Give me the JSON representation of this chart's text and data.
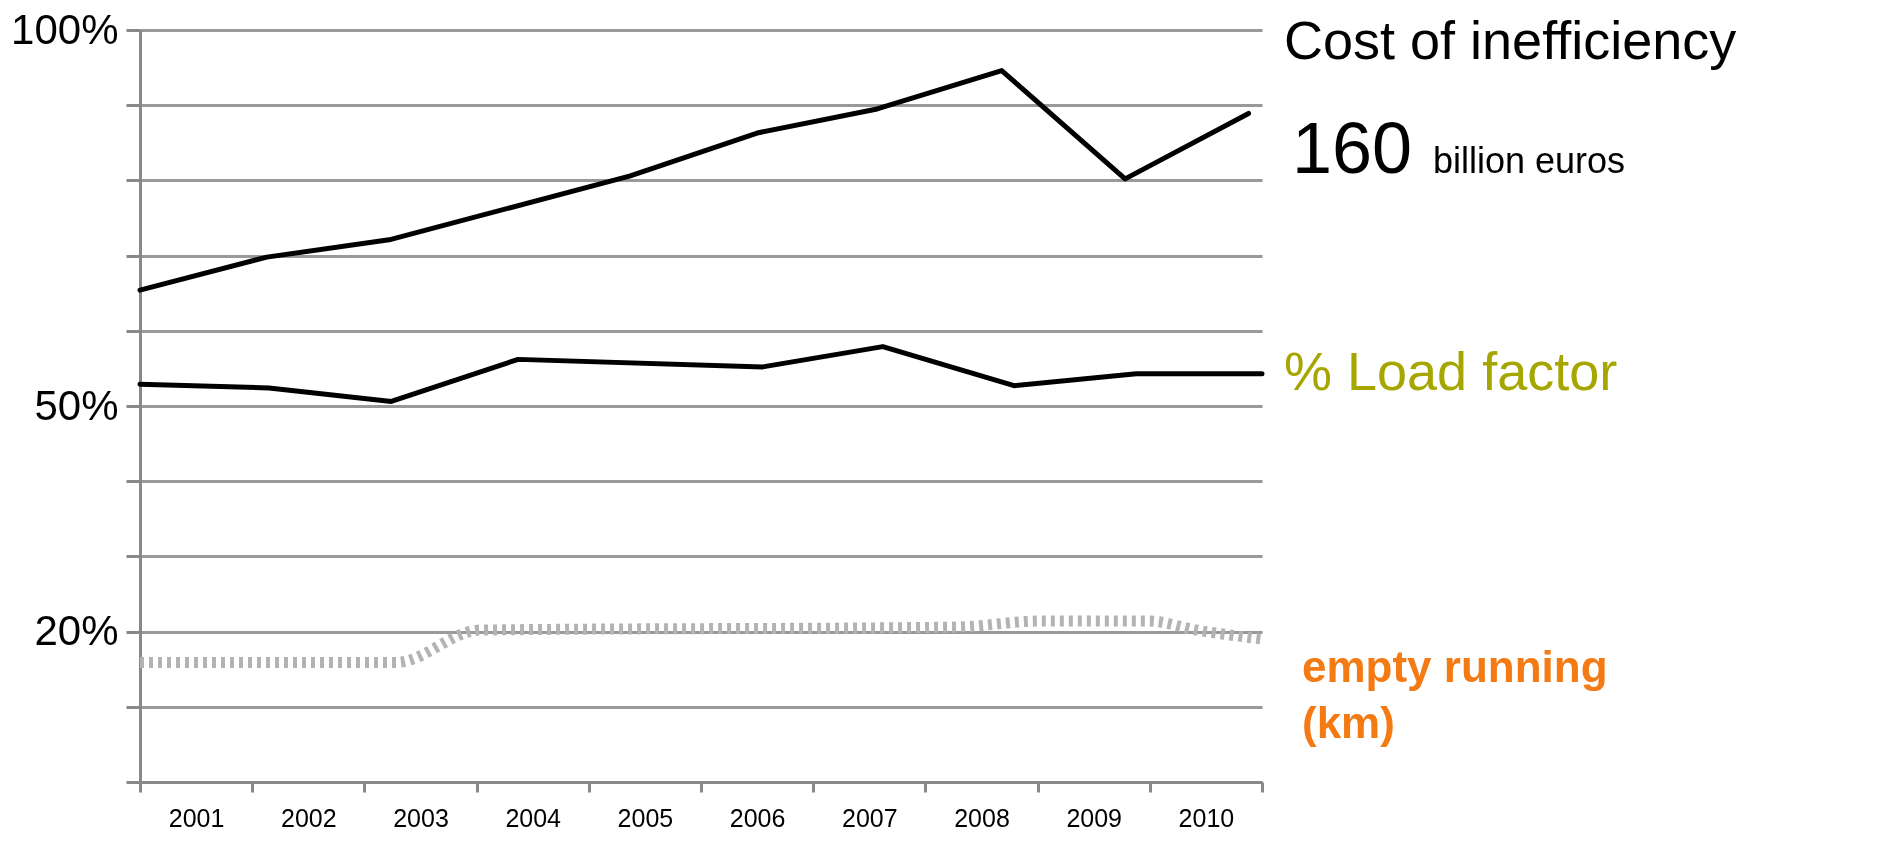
{
  "chart_data": {
    "type": "line",
    "annotations": [
      "160 billion euros"
    ],
    "xlim": [
      2000.5,
      2010.5
    ],
    "xticks": [
      {
        "value": 2000.5,
        "label": null
      },
      2001,
      {
        "value": 2001.5,
        "label": null
      },
      2002,
      {
        "value": 2002.5,
        "label": null
      },
      2003,
      {
        "value": 2003.5,
        "label": null
      },
      2004,
      {
        "value": 2004.5,
        "label": null
      },
      2005,
      {
        "value": 2005.5,
        "label": null
      },
      2006,
      {
        "value": 2006.5,
        "label": null
      },
      2007,
      {
        "value": 2007.5,
        "label": null
      },
      2008,
      {
        "value": 2008.5,
        "label": null
      },
      2009,
      {
        "value": 2009.5,
        "label": null
      },
      2010,
      {
        "value": 2010.5,
        "label": null
      }
    ],
    "ylim": [
      0,
      100
    ],
    "yticks": [
      {
        "value": 0,
        "label": null
      },
      {
        "value": 10,
        "label": null
      },
      {
        "value": 20,
        "label": "20%"
      },
      {
        "value": 30,
        "label": null
      },
      {
        "value": 40,
        "label": null
      },
      {
        "value": 50,
        "label": "50%"
      },
      {
        "value": 60,
        "label": null
      },
      {
        "value": 70,
        "label": null
      },
      {
        "value": 80,
        "label": null
      },
      {
        "value": 90,
        "label": null
      },
      {
        "value": 100,
        "label": "100%"
      }
    ],
    "grid": "y",
    "series": [
      {
        "name": "Cost of inefficiency",
        "color": "#000000",
        "line_style": "solid",
        "x": [
          2000.5,
          2001.63,
          2002.72,
          2004.87,
          2006.0,
          2007.07,
          2008.18,
          2009.28,
          2010.38
        ],
        "values": [
          65.4,
          69.8,
          72.1,
          80.6,
          86.3,
          89.5,
          94.6,
          80.2,
          88.9
        ]
      },
      {
        "name": "% Load factor",
        "color": "#000000",
        "line_style": "solid",
        "x": [
          2000.5,
          2001.65,
          2002.74,
          2003.87,
          2006.05,
          2007.12,
          2008.29,
          2009.38,
          2010.5
        ],
        "values": [
          52.9,
          52.4,
          50.6,
          56.2,
          55.2,
          57.9,
          52.7,
          54.3,
          54.3
        ]
      },
      {
        "name": "empty running (km)",
        "color": "#b3b3b3",
        "line_style": "dotted",
        "x": [
          2000.5,
          2002.78,
          2003.53,
          2007.77,
          2008.52,
          2009.49,
          2009.92,
          2010.5
        ],
        "values": [
          15.9,
          15.9,
          20.2,
          20.6,
          21.4,
          21.4,
          20.2,
          19.0
        ]
      }
    ]
  }
}
